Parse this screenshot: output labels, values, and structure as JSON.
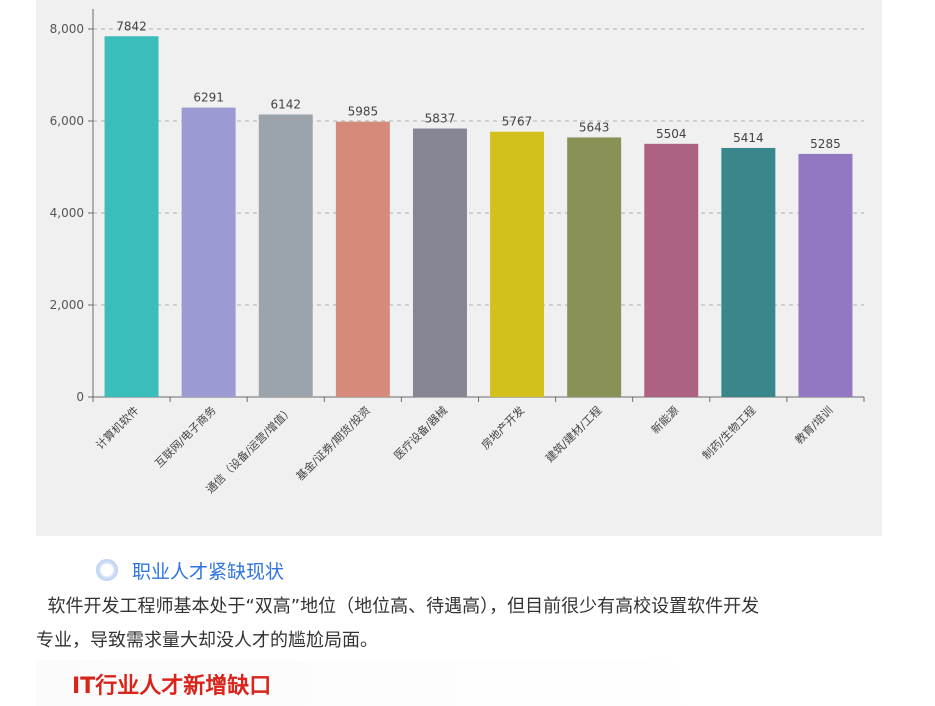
{
  "chart_data": {
    "type": "bar",
    "categories": [
      "计算机软件",
      "互联网/电子商务",
      "通信（设备/运营/增值）",
      "基金/证券/期货/投资",
      "医疗设备/器械",
      "房地产开发",
      "建筑/建材/工程",
      "新能源",
      "制药/生物工程",
      "教育/培训"
    ],
    "values": [
      7842,
      6291,
      6142,
      5985,
      5837,
      5767,
      5643,
      5504,
      5414,
      5285
    ],
    "value_labels": [
      "7842",
      "6291",
      "6142",
      "5985",
      "5837",
      "5767",
      "5643",
      "5504",
      "5414",
      "5285"
    ],
    "colors": [
      "#3bbdbb",
      "#9b9ad2",
      "#9ba3ab",
      "#d68a7b",
      "#868594",
      "#d2c11c",
      "#8a9157",
      "#ad6283",
      "#3a878b",
      "#9277c2"
    ],
    "ylim": [
      0,
      8000
    ],
    "yticks": [
      0,
      2000,
      4000,
      6000,
      8000
    ],
    "ytick_labels": [
      "0",
      "2,000",
      "4,000",
      "6,000",
      "8,000"
    ],
    "grid": true,
    "title": "",
    "xlabel": "",
    "ylabel": ""
  },
  "section": {
    "icon": "circle-icon",
    "title": "职业人才紧缺现状"
  },
  "body": {
    "line1": "  软件开发工程师基本处于“双高”地位（地位高、待遇高），但目前很少有高校设置软件开发",
    "line2": "专业，导致需求量大却没人才的尴尬局面。"
  },
  "banner": {
    "title": "IT行业人才新增缺口",
    "color": "#d9241b"
  }
}
